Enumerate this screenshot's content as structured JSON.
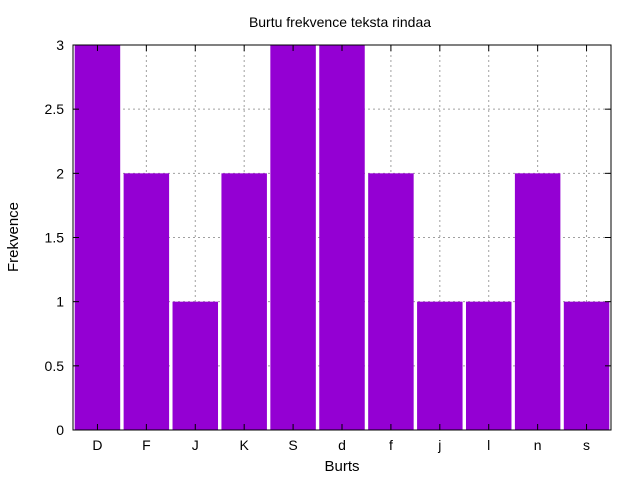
{
  "chart_data": {
    "type": "bar",
    "title": "Burtu frekvence teksta rindaa",
    "xlabel": "Burts",
    "ylabel": "Frekvence",
    "categories": [
      "D",
      "F",
      "J",
      "K",
      "S",
      "d",
      "f",
      "j",
      "l",
      "n",
      "s"
    ],
    "values": [
      3,
      2,
      1,
      2,
      3,
      3,
      2,
      1,
      1,
      2,
      1
    ],
    "ylim": [
      0,
      3
    ],
    "yticks": [
      "0",
      "0.5",
      "1",
      "1.5",
      "2",
      "2.5",
      "3"
    ],
    "grid": true,
    "bar_color": "#9400d3"
  }
}
